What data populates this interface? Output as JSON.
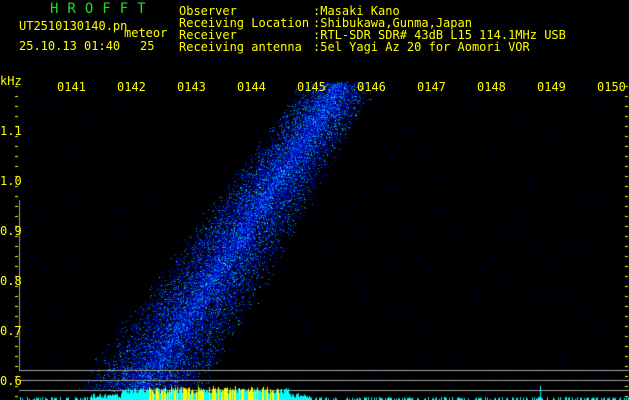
{
  "header": {
    "title": "HROFFT",
    "filename": "UT2510130140.pn",
    "meteor_label": "meteor",
    "datetime": "25.10.13 01:40",
    "meteor_count": "25"
  },
  "info": [
    {
      "label": "Observer",
      "value": ":Masaki Kano"
    },
    {
      "label": "Receiving Location",
      "value": ":Shibukawa,Gunma,Japan"
    },
    {
      "label": "Receiver",
      "value": ":RTL-SDR SDR# 43dB L15 114.1MHz USB"
    },
    {
      "label": "Receiving antenna",
      "value": ":5el Yagi Az 20 for Aomori VOR"
    }
  ],
  "chart_data": {
    "type": "heatmap",
    "ylabel": "kHz",
    "y_ticks": [
      "1.1",
      "1.0",
      "0.9",
      "0.8",
      "0.7",
      "0.6"
    ],
    "ylim": [
      0.58,
      1.2
    ],
    "x_ticks": [
      "0141",
      "0142",
      "0143",
      "0144",
      "0145",
      "0146",
      "0147",
      "0148",
      "0149",
      "0150"
    ],
    "colors": {
      "background": "#000000",
      "low": "#0000aa",
      "mid": "#00aaff",
      "high": "#33ff88",
      "histogram": "#00ffff",
      "histogram_peak": "#ffff00",
      "axis": "#ffff00",
      "grid": "#a0a0a0"
    }
  }
}
